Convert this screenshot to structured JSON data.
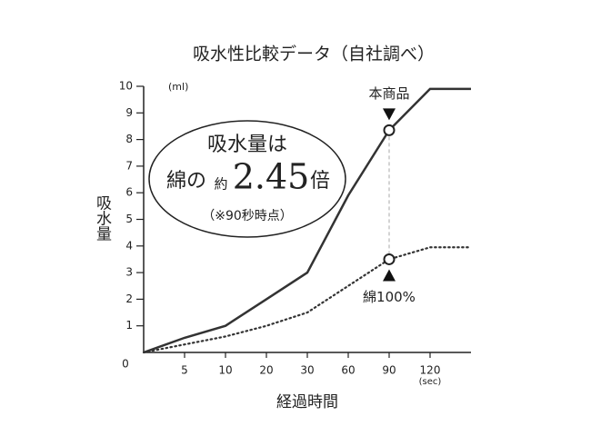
{
  "chart_data": {
    "type": "line",
    "title": "吸水性比較データ（自社調べ）",
    "x_label": "経過時間",
    "x_unit": "(sec)",
    "y_label": "吸水量",
    "y_unit": "(ml)",
    "categories": [
      null,
      "5",
      "10",
      "20",
      "30",
      "60",
      "90",
      "120",
      null
    ],
    "series": [
      {
        "name": "本商品",
        "color": "#333333",
        "style": "solid",
        "values": [
          0,
          0.55,
          1.0,
          2.0,
          3.0,
          5.9,
          8.35,
          9.9,
          9.9
        ]
      },
      {
        "name": "綿100%",
        "color": "#333333",
        "style": "dotted",
        "values": [
          0,
          0.3,
          0.6,
          1.0,
          1.5,
          2.5,
          3.5,
          3.95,
          3.95
        ]
      }
    ],
    "ylim": [
      0,
      10
    ],
    "yticks": [
      0,
      1,
      2,
      3,
      4,
      5,
      6,
      7,
      8,
      9,
      10
    ],
    "callout": {
      "line1": "吸水量は",
      "line2a": "綿の",
      "line2b": "約",
      "line2c": "2.45",
      "line2d": "倍",
      "note": "（※90秒時点）"
    },
    "highlight_index": 6
  }
}
